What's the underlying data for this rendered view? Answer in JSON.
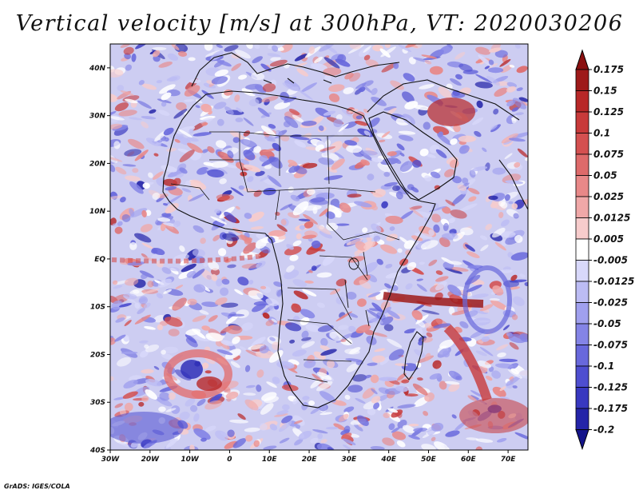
{
  "title": "Vertical velocity [m/s] at 300hPa, VT: 2020030206",
  "credit": "GrADS: IGES/COLA",
  "map": {
    "lon_range": [
      -30,
      75
    ],
    "lat_range": [
      -40,
      45
    ],
    "lon_ticks": [
      "30W",
      "20W",
      "10W",
      "0",
      "10E",
      "20E",
      "30E",
      "40E",
      "50E",
      "60E",
      "70E"
    ],
    "lat_ticks": [
      "40N",
      "30N",
      "20N",
      "10N",
      "EQ",
      "10S",
      "20S",
      "30S",
      "40S"
    ]
  },
  "colorbar": {
    "labels": [
      "0.175",
      "0.15",
      "0.125",
      "0.1",
      "0.075",
      "0.05",
      "0.025",
      "0.0125",
      "0.005",
      "-0.005",
      "-0.0125",
      "-0.025",
      "-0.05",
      "-0.075",
      "-0.1",
      "-0.125",
      "-0.175",
      "-0.2"
    ],
    "colors": [
      "#9e1a1a",
      "#b82828",
      "#c83a3a",
      "#d45050",
      "#de6a6a",
      "#e88888",
      "#f0a8a8",
      "#f7cccc",
      "#ffffff",
      "#d8d8fa",
      "#bcbcf4",
      "#a0a0ee",
      "#8484e6",
      "#6868dc",
      "#4e4ed0",
      "#3838c0",
      "#2424a8",
      "#161690"
    ],
    "top_arrow_color": "#8a1010",
    "bottom_arrow_color": "#14148a"
  }
}
